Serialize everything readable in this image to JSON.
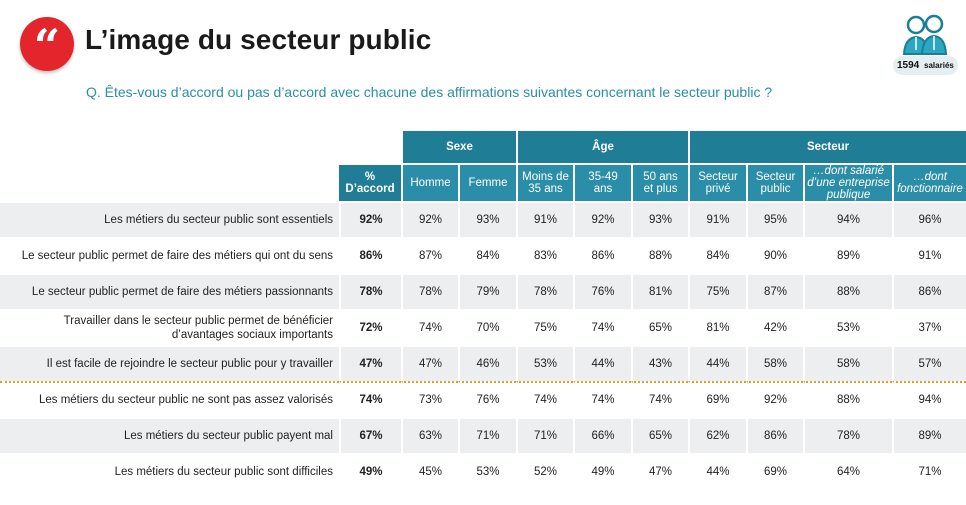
{
  "header": {
    "quote_glyph": "“",
    "title": "L’image du secteur public",
    "question": "Q. Êtes-vous d’accord ou pas d’accord avec chacune des affirmations suivantes concernant le secteur public ?",
    "sample_count": "1594",
    "sample_unit": "salariés",
    "sample_icon": "two-people-icon"
  },
  "table": {
    "groups": {
      "sexe": "Sexe",
      "age": "Âge",
      "secteur": "Secteur"
    },
    "columns": {
      "total": "% D’accord",
      "homme": "Homme",
      "femme": "Femme",
      "age1_l1": "Moins de",
      "age1_l2": "35 ans",
      "age2_l1": "35-49",
      "age2_l2": "ans",
      "age3_l1": "50 ans",
      "age3_l2": "et plus",
      "prive_l1": "Secteur",
      "prive_l2": "privé",
      "public_l1": "Secteur",
      "public_l2": "public",
      "entreprise_l1": "…dont salarié",
      "entreprise_l2": "d’une entreprise",
      "entreprise_l3": "publique",
      "fonctionnaire_l1": "…dont",
      "fonctionnaire_l2": "fonctionnaire"
    },
    "rows": [
      {
        "label": "Les métiers du secteur public sont essentiels",
        "label2": "",
        "values": [
          "92%",
          "92%",
          "93%",
          "91%",
          "92%",
          "93%",
          "91%",
          "95%",
          "94%",
          "96%"
        ]
      },
      {
        "label": "Le secteur public permet de faire des métiers qui ont du sens",
        "label2": "",
        "values": [
          "86%",
          "87%",
          "84%",
          "83%",
          "86%",
          "88%",
          "84%",
          "90%",
          "89%",
          "91%"
        ]
      },
      {
        "label": "Le secteur public permet de faire des métiers passionnants",
        "label2": "",
        "values": [
          "78%",
          "78%",
          "79%",
          "78%",
          "76%",
          "81%",
          "75%",
          "87%",
          "88%",
          "86%"
        ]
      },
      {
        "label": "Travailler dans le secteur public permet de bénéficier",
        "label2": "d’avantages sociaux importants",
        "values": [
          "72%",
          "74%",
          "70%",
          "75%",
          "74%",
          "65%",
          "81%",
          "42%",
          "53%",
          "37%"
        ]
      },
      {
        "label": "Il est facile de rejoindre le secteur public pour y travailler",
        "label2": "",
        "values": [
          "47%",
          "47%",
          "46%",
          "53%",
          "44%",
          "43%",
          "44%",
          "58%",
          "58%",
          "57%"
        ]
      },
      {
        "label": "Les métiers du secteur public ne sont pas assez valorisés",
        "label2": "",
        "values": [
          "74%",
          "73%",
          "76%",
          "74%",
          "74%",
          "74%",
          "69%",
          "92%",
          "88%",
          "94%"
        ]
      },
      {
        "label": "Les métiers du secteur public payent mal",
        "label2": "",
        "values": [
          "67%",
          "63%",
          "71%",
          "71%",
          "66%",
          "65%",
          "62%",
          "86%",
          "78%",
          "89%"
        ]
      },
      {
        "label": "Les métiers du secteur public sont difficiles",
        "label2": "",
        "values": [
          "49%",
          "45%",
          "53%",
          "52%",
          "49%",
          "47%",
          "44%",
          "69%",
          "64%",
          "71%"
        ]
      }
    ]
  },
  "colors": {
    "accent_red": "#e4262c",
    "header_teal": "#1f7d95",
    "subheader_teal": "#2b8ea8",
    "question_teal": "#2a8ea6",
    "separator_gold": "#e0a020"
  }
}
